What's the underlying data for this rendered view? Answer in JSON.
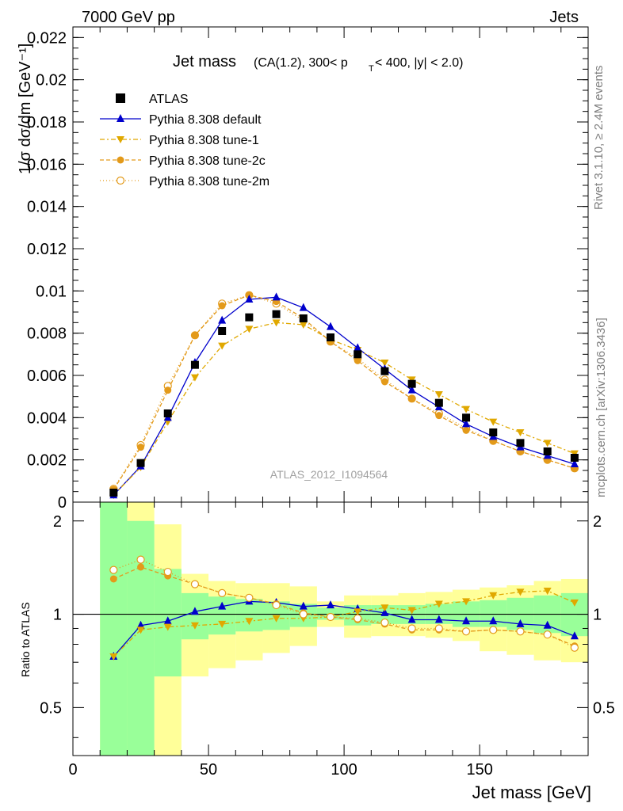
{
  "header": {
    "left": "7000 GeV pp",
    "right": "Jets"
  },
  "side_labels": {
    "rivet": "Rivet 3.1.10, ≥ 2.4M events",
    "mcplots": "mcplots.cern.ch [arXiv:1306.3436]"
  },
  "chart_data": {
    "type": "scatter",
    "title_main": "Jet mass",
    "title_sub_a": "(CA(1.2), 300< p",
    "title_sub_sub": "T",
    "title_sub_b": " < 400, |y| < 2.0)",
    "watermark": "ATLAS_2012_I1094564",
    "xlabel": "Jet mass [GeV]",
    "ylabel_top": "1/σ dσ/dm [GeV⁻¹]",
    "ylabel_ratio": "Ratio to ATLAS",
    "xlim": [
      0,
      190
    ],
    "ylim_top": [
      0,
      0.0225
    ],
    "ylim_ratio": [
      0.35,
      2.3
    ],
    "x_ticks": [
      "0",
      "50",
      "100",
      "150"
    ],
    "y_ticks_top": [
      "0",
      "0.002",
      "0.004",
      "0.006",
      "0.008",
      "0.01",
      "0.012",
      "0.014",
      "0.016",
      "0.018",
      "0.02",
      "0.022"
    ],
    "y_ticks_ratio": [
      "0.5",
      "1",
      "2"
    ],
    "x": [
      15,
      25,
      35,
      45,
      55,
      65,
      75,
      85,
      95,
      105,
      115,
      125,
      135,
      145,
      155,
      165,
      175,
      185
    ],
    "bin_edges": [
      10,
      20,
      30,
      40,
      50,
      60,
      70,
      80,
      90,
      100,
      110,
      120,
      130,
      140,
      150,
      160,
      170,
      180,
      190
    ],
    "series": [
      {
        "name": "ATLAS",
        "color": "#000000",
        "marker": "square",
        "values": [
          0.00045,
          0.00185,
          0.0042,
          0.0065,
          0.0081,
          0.00875,
          0.0089,
          0.0087,
          0.0078,
          0.007,
          0.0062,
          0.0056,
          0.0047,
          0.004,
          0.0033,
          0.0028,
          0.0024,
          0.0021
        ]
      },
      {
        "name": "Pythia 8.308 default",
        "color": "#0000cc",
        "marker": "triangle-up",
        "dash": "solid",
        "values": [
          0.00033,
          0.0017,
          0.004,
          0.0066,
          0.0086,
          0.0096,
          0.0097,
          0.0092,
          0.0083,
          0.0073,
          0.0063,
          0.0053,
          0.0045,
          0.0037,
          0.0031,
          0.0026,
          0.0022,
          0.0018
        ]
      },
      {
        "name": "Pythia 8.308 tune-1",
        "color": "#e0a800",
        "marker": "triangle-down",
        "dash": "6,3,2,3",
        "values": [
          0.00033,
          0.00165,
          0.0038,
          0.0059,
          0.0074,
          0.0082,
          0.0085,
          0.0084,
          0.0077,
          0.0072,
          0.0066,
          0.0058,
          0.0051,
          0.0044,
          0.0038,
          0.0033,
          0.0028,
          0.0023
        ]
      },
      {
        "name": "Pythia 8.308 tune-2c",
        "color": "#e39a1a",
        "marker": "circle",
        "dash": "5,3",
        "values": [
          0.0006,
          0.0026,
          0.0053,
          0.0079,
          0.0093,
          0.0098,
          0.0095,
          0.0087,
          0.0076,
          0.0067,
          0.0057,
          0.0049,
          0.0041,
          0.0034,
          0.0029,
          0.0024,
          0.002,
          0.0016
        ]
      },
      {
        "name": "Pythia 8.308 tune-2m",
        "color": "#e39a1a",
        "marker": "circle-open",
        "dash": "1,3",
        "values": [
          0.00063,
          0.0027,
          0.0055,
          0.0079,
          0.0094,
          0.0098,
          0.0094,
          0.0086,
          0.0076,
          0.0068,
          0.0058,
          0.0049,
          0.0042,
          0.0035,
          0.0029,
          0.0024,
          0.002,
          0.0016
        ]
      }
    ],
    "ratio_band_green": {
      "color": "#99ff99",
      "lo": [
        0.35,
        0.35,
        0.63,
        0.83,
        0.86,
        0.88,
        0.89,
        0.91,
        0.96,
        0.92,
        0.93,
        0.93,
        0.93,
        0.91,
        0.91,
        0.89,
        0.87,
        0.85
      ],
      "hi": [
        2.3,
        2.0,
        1.4,
        1.17,
        1.14,
        1.12,
        1.1,
        1.08,
        1.05,
        1.07,
        1.07,
        1.07,
        1.08,
        1.1,
        1.11,
        1.13,
        1.15,
        1.17
      ]
    },
    "ratio_band_yellow": {
      "color": "#ffff99",
      "lo": [
        0.35,
        0.35,
        0.35,
        0.63,
        0.67,
        0.71,
        0.75,
        0.79,
        0.91,
        0.84,
        0.85,
        0.85,
        0.84,
        0.82,
        0.76,
        0.74,
        0.71,
        0.7
      ],
      "hi": [
        2.3,
        2.3,
        1.95,
        1.35,
        1.28,
        1.26,
        1.26,
        1.23,
        1.1,
        1.15,
        1.15,
        1.17,
        1.18,
        1.2,
        1.22,
        1.24,
        1.28,
        1.3
      ]
    },
    "ratio_series": [
      {
        "name": "Pythia 8.308 default",
        "values": [
          0.73,
          0.92,
          0.95,
          1.02,
          1.06,
          1.1,
          1.09,
          1.06,
          1.07,
          1.04,
          1.01,
          0.96,
          0.96,
          0.95,
          0.95,
          0.93,
          0.92,
          0.85
        ]
      },
      {
        "name": "Pythia 8.308 tune-1",
        "values": [
          0.73,
          0.89,
          0.91,
          0.92,
          0.93,
          0.95,
          0.97,
          0.97,
          0.98,
          1.02,
          1.05,
          1.03,
          1.08,
          1.1,
          1.15,
          1.18,
          1.19,
          1.09
        ]
      },
      {
        "name": "Pythia 8.308 tune-2c",
        "values": [
          1.3,
          1.42,
          1.33,
          1.25,
          1.17,
          1.13,
          1.08,
          1.01,
          0.98,
          0.96,
          0.93,
          0.89,
          0.89,
          0.88,
          0.89,
          0.88,
          0.86,
          0.79
        ]
      },
      {
        "name": "Pythia 8.308 tune-2m",
        "values": [
          1.39,
          1.5,
          1.37,
          1.25,
          1.17,
          1.13,
          1.07,
          1.0,
          0.98,
          0.97,
          0.94,
          0.9,
          0.9,
          0.88,
          0.89,
          0.88,
          0.86,
          0.78
        ]
      }
    ]
  }
}
